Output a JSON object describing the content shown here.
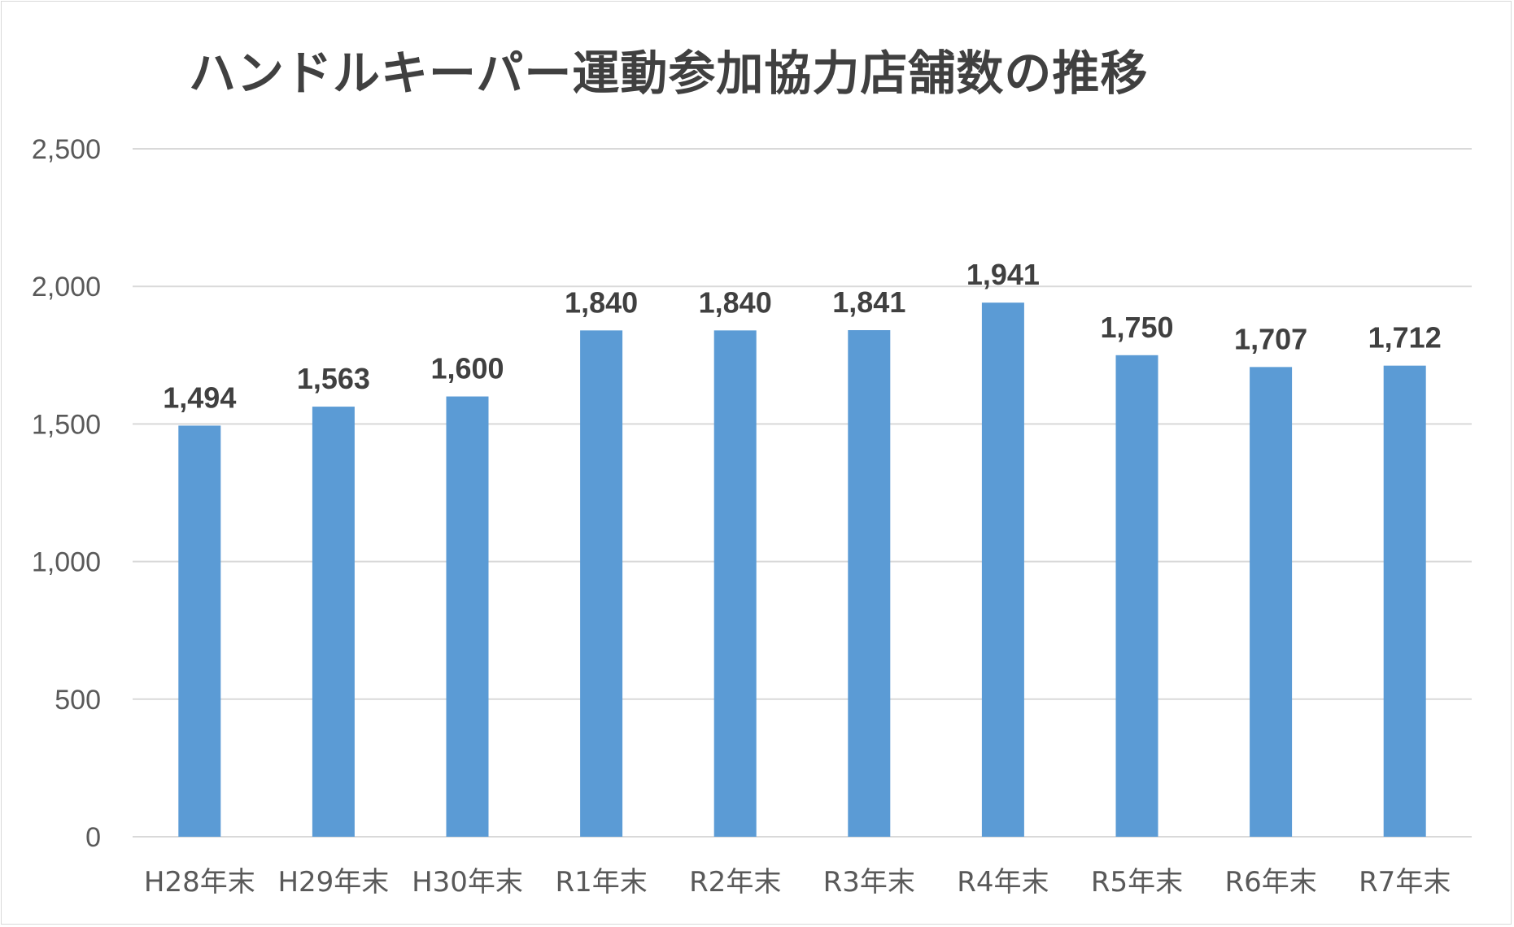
{
  "chart_data": {
    "type": "bar",
    "title": "ハンドルキーパー運動参加協力店舗数の推移",
    "categories": [
      "H28年末",
      "H29年末",
      "H30年末",
      "R1年末",
      "R2年末",
      "R3年末",
      "R4年末",
      "R5年末",
      "R6年末",
      "R7年末"
    ],
    "values": [
      1494,
      1563,
      1600,
      1840,
      1840,
      1841,
      1941,
      1750,
      1707,
      1712
    ],
    "data_labels": [
      "1,494",
      "1,563",
      "1,600",
      "1,840",
      "1,840",
      "1,841",
      "1,941",
      "1,750",
      "1,707",
      "1,712"
    ],
    "y_ticks": [
      0,
      500,
      1000,
      1500,
      2000,
      2500
    ],
    "y_tick_labels": [
      "0",
      "500",
      "1,000",
      "1,500",
      "2,000",
      "2,500"
    ],
    "ylim": [
      0,
      2500
    ],
    "xlabel": "",
    "ylabel": "",
    "grid": true,
    "legend": "none",
    "bar_color": "#5b9bd5",
    "gridline_color": "#d9d9d9"
  }
}
